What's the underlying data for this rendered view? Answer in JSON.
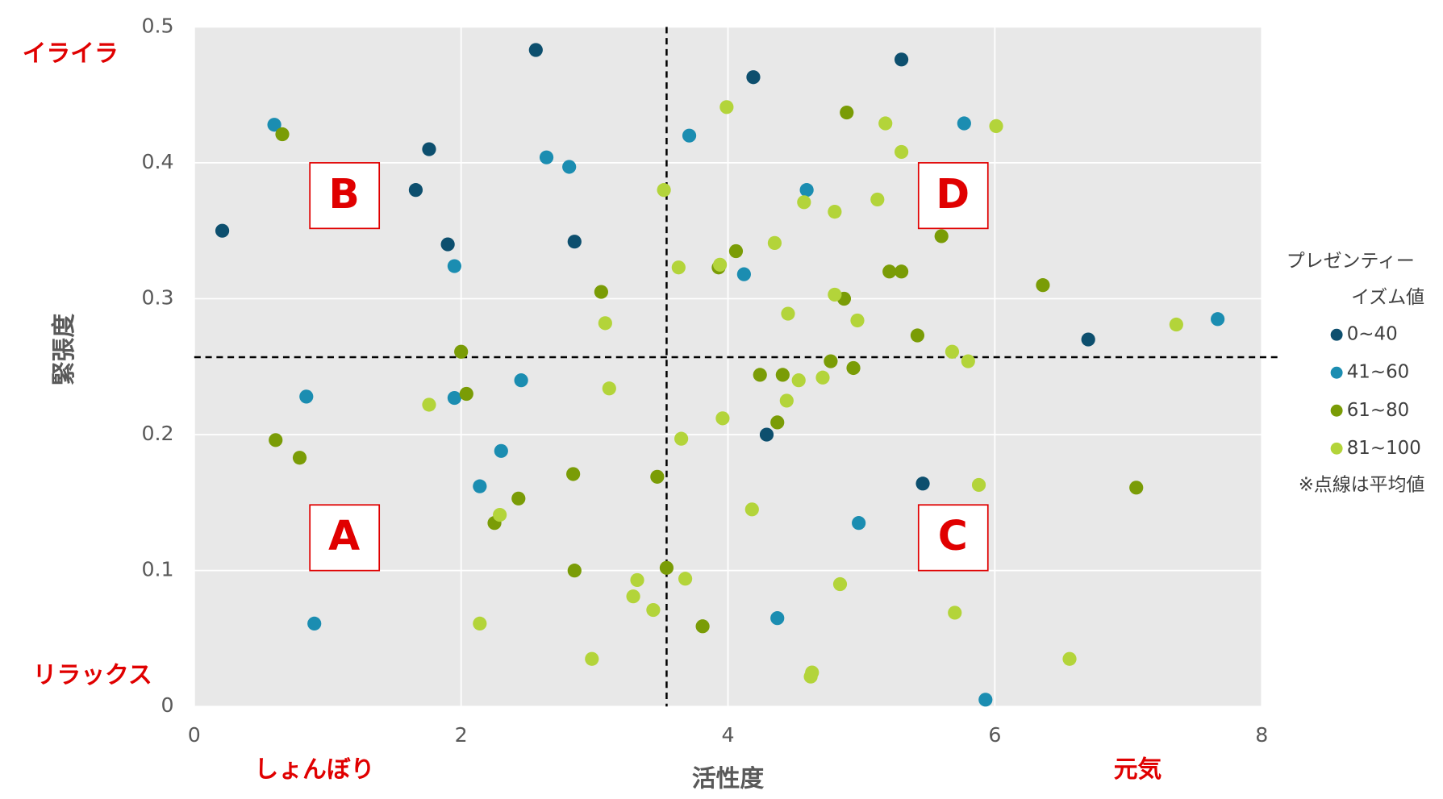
{
  "chart_data": {
    "type": "scatter",
    "x_label": "活性度",
    "y_label": "緊張度",
    "xlim": [
      0,
      8
    ],
    "xticks": [
      0,
      2,
      4,
      6,
      8
    ],
    "ylim": [
      0,
      0.5
    ],
    "yticks": [
      {
        "value": 0,
        "label": "0"
      },
      0.1,
      0.2,
      0.3,
      0.4,
      0.5
    ],
    "grid": true,
    "mean_x": 3.54,
    "mean_y": 0.257,
    "legend_title": [
      "プレゼンティー",
      "イズム値"
    ],
    "note": "※点線は平均値",
    "annotations": {
      "top_left": "イライラ",
      "bottom_left": "リラックス",
      "left": "しょんぼり",
      "right": "元気"
    },
    "quadrants": [
      "A",
      "B",
      "C",
      "D"
    ],
    "series": [
      {
        "name": "0~40",
        "color": "#0d4f6e",
        "x": [
          0.21,
          1.66,
          1.76,
          1.9,
          2.56,
          2.85,
          4.19,
          5.3,
          6.7,
          4.29,
          5.46
        ],
        "values": [
          0.35,
          0.38,
          0.41,
          0.34,
          0.483,
          0.342,
          0.463,
          0.476,
          0.27,
          0.2,
          0.164
        ]
      },
      {
        "name": "41~60",
        "color": "#1b8db1",
        "x": [
          0.6,
          0.84,
          0.9,
          1.95,
          1.95,
          2.45,
          2.64,
          2.81,
          2.3,
          2.14,
          3.71,
          4.12,
          4.59,
          4.37,
          4.98,
          5.77,
          5.93,
          7.67
        ],
        "values": [
          0.428,
          0.228,
          0.061,
          0.324,
          0.227,
          0.24,
          0.404,
          0.397,
          0.188,
          0.162,
          0.42,
          0.318,
          0.38,
          0.065,
          0.135,
          0.429,
          0.005,
          0.285
        ]
      },
      {
        "name": "61~80",
        "color": "#7a9c06",
        "x": [
          0.66,
          0.61,
          0.79,
          2.0,
          2.04,
          2.25,
          2.43,
          2.84,
          2.85,
          3.05,
          3.47,
          3.54,
          3.81,
          3.93,
          4.06,
          4.24,
          4.37,
          4.41,
          4.77,
          4.87,
          4.89,
          4.94,
          5.21,
          5.3,
          5.42,
          5.6,
          6.36,
          7.06
        ],
        "values": [
          0.421,
          0.196,
          0.183,
          0.261,
          0.23,
          0.135,
          0.153,
          0.171,
          0.1,
          0.305,
          0.169,
          0.102,
          0.059,
          0.323,
          0.335,
          0.244,
          0.209,
          0.244,
          0.254,
          0.3,
          0.437,
          0.249,
          0.32,
          0.32,
          0.273,
          0.346,
          0.31,
          0.161
        ]
      },
      {
        "name": "81~100",
        "color": "#b3d43a",
        "x": [
          1.76,
          2.14,
          2.29,
          2.98,
          3.08,
          3.11,
          3.29,
          3.32,
          3.44,
          3.52,
          3.63,
          3.65,
          3.68,
          3.94,
          3.96,
          3.99,
          4.18,
          4.35,
          4.44,
          4.45,
          4.53,
          4.57,
          4.62,
          4.63,
          4.71,
          4.8,
          4.8,
          4.84,
          4.97,
          5.12,
          5.18,
          5.3,
          5.68,
          5.7,
          5.8,
          5.88,
          6.01,
          6.56,
          7.36
        ],
        "values": [
          0.222,
          0.061,
          0.141,
          0.035,
          0.282,
          0.234,
          0.081,
          0.093,
          0.071,
          0.38,
          0.323,
          0.197,
          0.094,
          0.325,
          0.212,
          0.441,
          0.145,
          0.341,
          0.225,
          0.289,
          0.24,
          0.371,
          0.022,
          0.025,
          0.242,
          0.364,
          0.303,
          0.09,
          0.284,
          0.373,
          0.429,
          0.408,
          0.261,
          0.069,
          0.254,
          0.163,
          0.427,
          0.035,
          0.281
        ]
      }
    ]
  }
}
